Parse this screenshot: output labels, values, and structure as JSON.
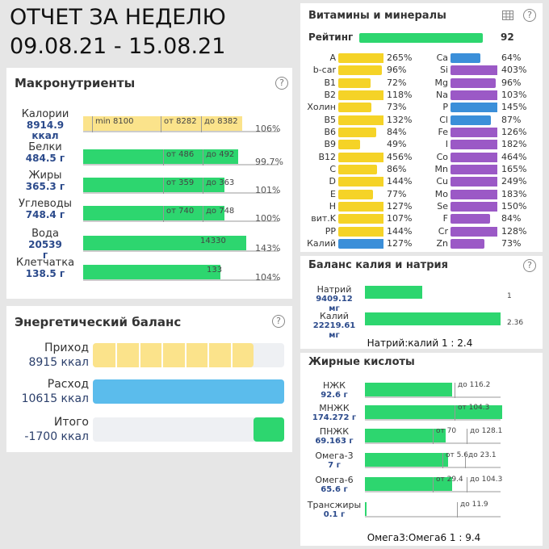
{
  "header": {
    "title": "ОТЧЕТ ЗА НЕДЕЛЮ",
    "dates": "09.08.21 - 15.08.21"
  },
  "help_icon": "?",
  "macros": {
    "title": "Макронутриенты",
    "rows": [
      {
        "name": "Калории",
        "amount": "8914.9 ккал",
        "pct": "106%",
        "markers": [
          "min 8100",
          "от 8282",
          "до 8382"
        ],
        "color": "#fbe38b"
      },
      {
        "name": "Белки",
        "amount": "484.5 г",
        "pct": "99.7%",
        "markers": [
          "от 486",
          "до 492"
        ],
        "color": "#2dd66f"
      },
      {
        "name": "Жиры",
        "amount": "365.3 г",
        "pct": "101%",
        "markers": [
          "от 359",
          "до 363"
        ],
        "color": "#2dd66f"
      },
      {
        "name": "Углеводы",
        "amount": "748.4 г",
        "pct": "100%",
        "markers": [
          "от 740",
          "до 748"
        ],
        "color": "#2dd66f"
      },
      {
        "name": "Вода",
        "amount": "20539 г",
        "pct": "143%",
        "markers": [
          "14330"
        ],
        "color": "#2dd66f"
      },
      {
        "name": "Клетчатка",
        "amount": "138.5 г",
        "pct": "104%",
        "markers": [
          "133"
        ],
        "color": "#2dd66f"
      }
    ]
  },
  "energy": {
    "title": "Энергетический баланс",
    "rows": [
      {
        "label": "Приход",
        "value": 8915,
        "value_label": "8915 ккал",
        "color": "#fbe38b"
      },
      {
        "label": "Расход",
        "value": 10615,
        "value_label": "10615 ккал",
        "color": "#5bbcec"
      },
      {
        "label": "Итого",
        "value": -1700,
        "value_label": "-1700 ккал",
        "color": "#2dd66f"
      }
    ]
  },
  "vitamins": {
    "title": "Витамины и минералы",
    "rating": {
      "label": "Рейтинг",
      "value": 92,
      "color": "#2dd66f"
    },
    "left": [
      {
        "name": "A",
        "value": 265,
        "label": "265%",
        "color": "#f5d327"
      },
      {
        "name": "b-car",
        "value": 96,
        "label": "96%",
        "color": "#f5d327"
      },
      {
        "name": "B1",
        "value": 72,
        "label": "72%",
        "color": "#f5d327"
      },
      {
        "name": "B2",
        "value": 118,
        "label": "118%",
        "color": "#f5d327"
      },
      {
        "name": "Холин",
        "value": 73,
        "label": "73%",
        "color": "#f5d327"
      },
      {
        "name": "B5",
        "value": 132,
        "label": "132%",
        "color": "#f5d327"
      },
      {
        "name": "B6",
        "value": 84,
        "label": "84%",
        "color": "#f5d327"
      },
      {
        "name": "B9",
        "value": 49,
        "label": "49%",
        "color": "#f5d327"
      },
      {
        "name": "B12",
        "value": 456,
        "label": "456%",
        "color": "#f5d327"
      },
      {
        "name": "C",
        "value": 86,
        "label": "86%",
        "color": "#f5d327"
      },
      {
        "name": "D",
        "value": 144,
        "label": "144%",
        "color": "#f5d327"
      },
      {
        "name": "E",
        "value": 77,
        "label": "77%",
        "color": "#f5d327"
      },
      {
        "name": "H",
        "value": 127,
        "label": "127%",
        "color": "#f5d327"
      },
      {
        "name": "вит.K",
        "value": 107,
        "label": "107%",
        "color": "#f5d327"
      },
      {
        "name": "PP",
        "value": 144,
        "label": "144%",
        "color": "#f5d327"
      },
      {
        "name": "Калий",
        "value": 127,
        "label": "127%",
        "color": "#3b8fd9"
      }
    ],
    "right": [
      {
        "name": "Ca",
        "value": 64,
        "label": "64%",
        "color": "#3b8fd9"
      },
      {
        "name": "Si",
        "value": 403,
        "label": "403%",
        "color": "#9b59c6"
      },
      {
        "name": "Mg",
        "value": 96,
        "label": "96%",
        "color": "#9b59c6"
      },
      {
        "name": "Na",
        "value": 103,
        "label": "103%",
        "color": "#9b59c6"
      },
      {
        "name": "P",
        "value": 145,
        "label": "145%",
        "color": "#3b8fd9"
      },
      {
        "name": "Cl",
        "value": 87,
        "label": "87%",
        "color": "#3b8fd9"
      },
      {
        "name": "Fe",
        "value": 126,
        "label": "126%",
        "color": "#9b59c6"
      },
      {
        "name": "I",
        "value": 182,
        "label": "182%",
        "color": "#9b59c6"
      },
      {
        "name": "Co",
        "value": 464,
        "label": "464%",
        "color": "#9b59c6"
      },
      {
        "name": "Mn",
        "value": 165,
        "label": "165%",
        "color": "#9b59c6"
      },
      {
        "name": "Cu",
        "value": 249,
        "label": "249%",
        "color": "#9b59c6"
      },
      {
        "name": "Mo",
        "value": 183,
        "label": "183%",
        "color": "#9b59c6"
      },
      {
        "name": "Se",
        "value": 150,
        "label": "150%",
        "color": "#9b59c6"
      },
      {
        "name": "F",
        "value": 84,
        "label": "84%",
        "color": "#9b59c6"
      },
      {
        "name": "Cr",
        "value": 128,
        "label": "128%",
        "color": "#9b59c6"
      },
      {
        "name": "Zn",
        "value": 73,
        "label": "73%",
        "color": "#9b59c6"
      }
    ]
  },
  "potassium": {
    "title": "Баланс калия и натрия",
    "rows": [
      {
        "name": "Натрий",
        "amount": "9409.12 мг",
        "value": 1,
        "color": "#2dd66f"
      },
      {
        "name": "Калий",
        "amount": "22219.61 мг",
        "value": 2.36,
        "color": "#2dd66f"
      }
    ],
    "ratio": "Натрий:калий 1 : 2.4"
  },
  "fats": {
    "title": "Жирные кислоты",
    "rows": [
      {
        "name": "НЖК",
        "amount": "92.6 г",
        "markers": [
          "до 116.2"
        ]
      },
      {
        "name": "МНЖК",
        "amount": "174.272 г",
        "markers": [
          "от 104.3"
        ]
      },
      {
        "name": "ПНЖК",
        "amount": "69.163 г",
        "markers": [
          "от 70",
          "до 128.1"
        ]
      },
      {
        "name": "Омега-3",
        "amount": "7 г",
        "markers": [
          "от 5.6",
          "до 23.1"
        ]
      },
      {
        "name": "Омега-6",
        "amount": "65.6 г",
        "markers": [
          "от 29.4",
          "до 104.3"
        ]
      },
      {
        "name": "Трансжиры",
        "amount": "0.1 г",
        "markers": [
          "до 11.9"
        ]
      }
    ],
    "color": "#2dd66f",
    "ratio": "Омега3:Омега6 1 : 9.4"
  }
}
